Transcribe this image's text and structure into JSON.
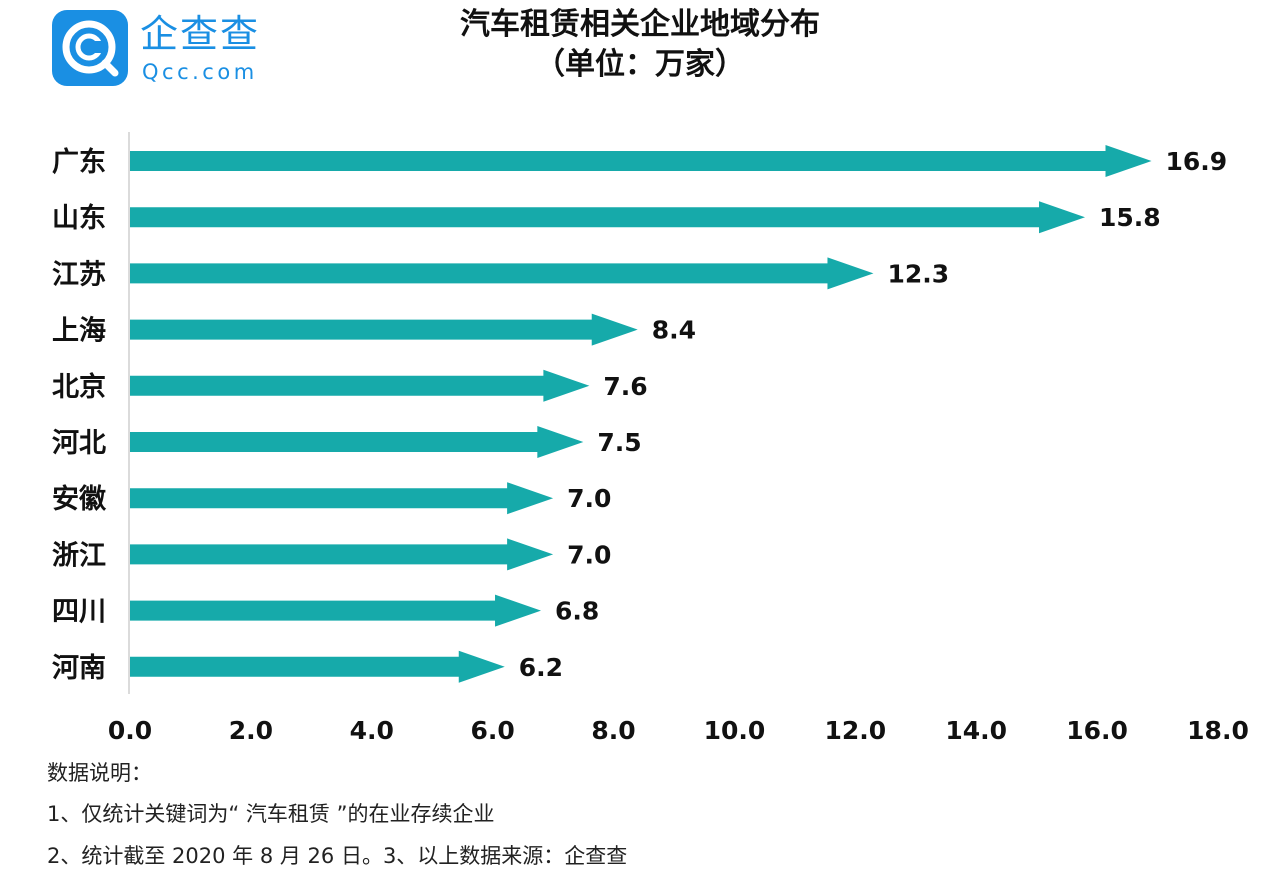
{
  "logo": {
    "name": "企查查",
    "domain": "Qcc.com"
  },
  "title": {
    "line1": "汽车租赁相关企业地域分布",
    "line2": "（单位：万家）"
  },
  "colors": {
    "bar": "#16aaaa",
    "brand": "#1a8fe3",
    "axis": "#cfcfcf",
    "text": "#111111"
  },
  "chart_data": {
    "type": "bar",
    "orientation": "horizontal",
    "categories": [
      "广东",
      "山东",
      "江苏",
      "上海",
      "北京",
      "河北",
      "安徽",
      "浙江",
      "四川",
      "河南"
    ],
    "values": [
      16.9,
      15.8,
      12.3,
      8.4,
      7.6,
      7.5,
      7.0,
      7.0,
      6.8,
      6.2
    ],
    "value_labels": [
      "16.9",
      "15.8",
      "12.3",
      "8.4",
      "7.6",
      "7.5",
      "7.0",
      "7.0",
      "6.8",
      "6.2"
    ],
    "xlim": [
      0,
      18
    ],
    "xticks": [
      "0.0",
      "2.0",
      "4.0",
      "6.0",
      "8.0",
      "10.0",
      "12.0",
      "14.0",
      "16.0",
      "18.0"
    ],
    "grid": false,
    "bar_shape": "arrow"
  },
  "notes": [
    "数据说明：",
    "1、仅统计关键词为“ 汽车租赁 ”的在业存续企业",
    "2、统计截至 2020 年 8 月 26 日。3、以上数据来源：企查查"
  ]
}
